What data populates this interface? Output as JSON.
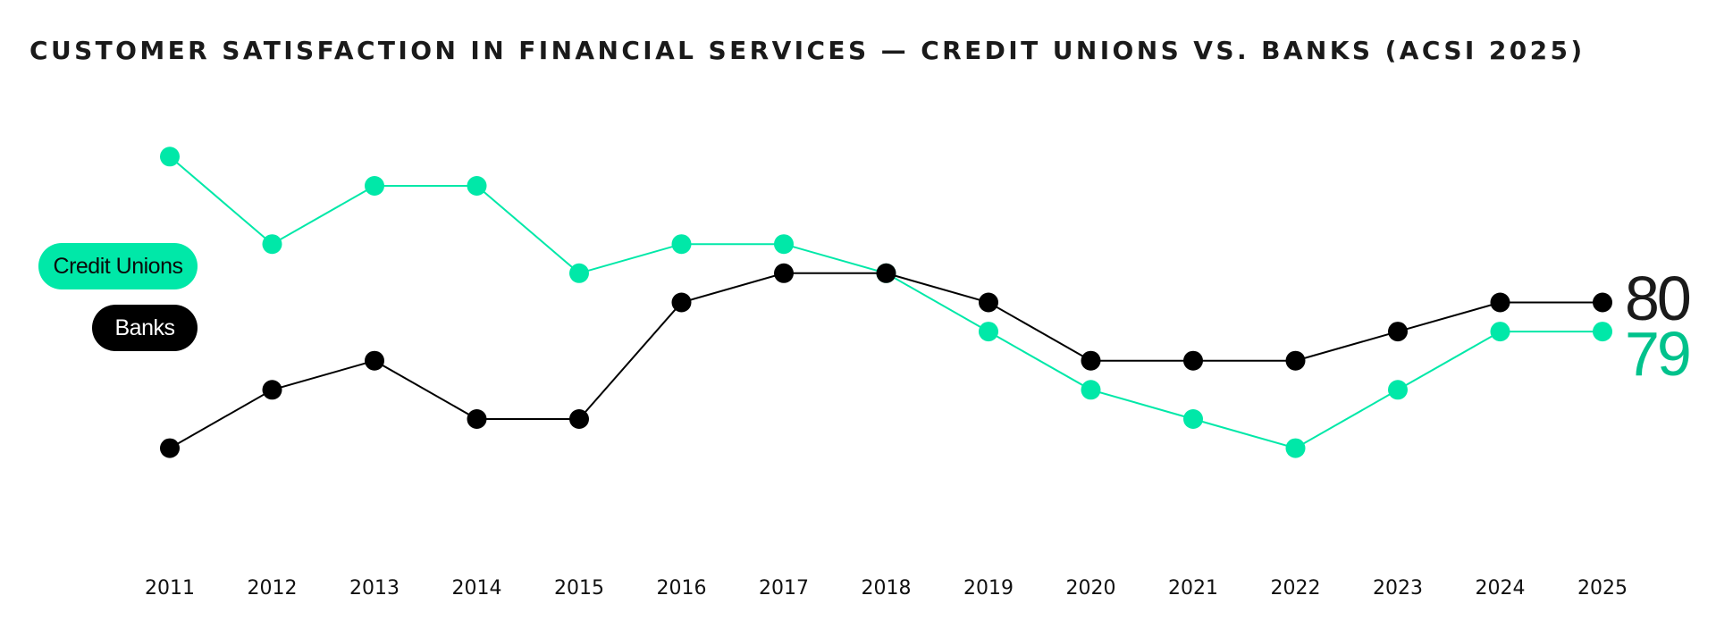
{
  "chart_data": {
    "type": "line",
    "title": "CUSTOMER SATISFACTION IN FINANCIAL SERVICES — CREDIT UNIONS VS. BANKS (ACSI 2025)",
    "xlabel": "",
    "ylabel": "",
    "x": [
      "2011",
      "2012",
      "2013",
      "2014",
      "2015",
      "2016",
      "2017",
      "2018",
      "2019",
      "2020",
      "2021",
      "2022",
      "2023",
      "2024",
      "2025"
    ],
    "series": [
      {
        "name": "Credit Unions",
        "color": "#00e8a8",
        "values": [
          85,
          82,
          84,
          84,
          81,
          82,
          82,
          81,
          79,
          77,
          76,
          75,
          77,
          79,
          79
        ]
      },
      {
        "name": "Banks",
        "color": "#000000",
        "values": [
          75,
          77,
          78,
          76,
          76,
          80,
          81,
          81,
          80,
          78,
          78,
          78,
          79,
          80,
          80
        ]
      }
    ],
    "end_labels": [
      {
        "series": "Banks",
        "text": "80",
        "color": "#1a1a1a"
      },
      {
        "series": "Credit Unions",
        "text": "79",
        "color": "#00c28c"
      }
    ],
    "ylim": [
      71,
      86
    ],
    "grid": false,
    "legend_position": "left"
  }
}
